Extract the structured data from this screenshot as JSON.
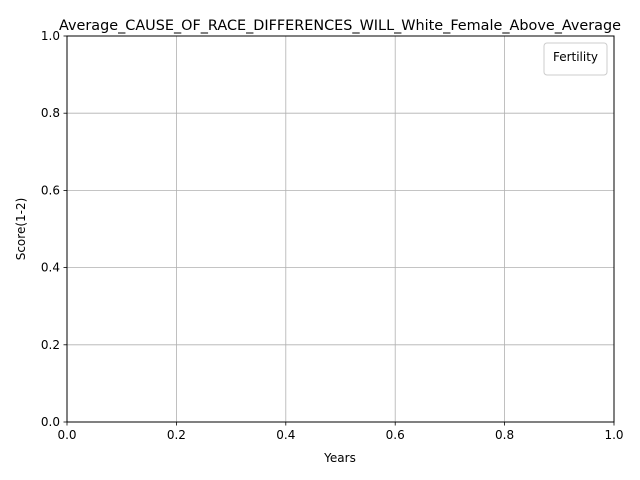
{
  "chart_data": {
    "type": "line",
    "title": "Average_CAUSE_OF_RACE_DIFFERENCES_WILL_White_Female_Above_Average",
    "xlabel": "Years",
    "ylabel": "Score(1-2)",
    "xlim": [
      0.0,
      1.0
    ],
    "ylim": [
      0.0,
      1.0
    ],
    "x_ticks": [
      "0.0",
      "0.2",
      "0.4",
      "0.6",
      "0.8",
      "1.0"
    ],
    "y_ticks": [
      "0.0",
      "0.2",
      "0.4",
      "0.6",
      "0.8",
      "1.0"
    ],
    "grid": true,
    "legend": {
      "title": "Fertility",
      "location": "upper right",
      "entries": []
    },
    "series": []
  },
  "colors": {
    "grid": "#b0b0b0",
    "axis": "#000000",
    "legend_border": "#cccccc",
    "background": "#ffffff"
  }
}
